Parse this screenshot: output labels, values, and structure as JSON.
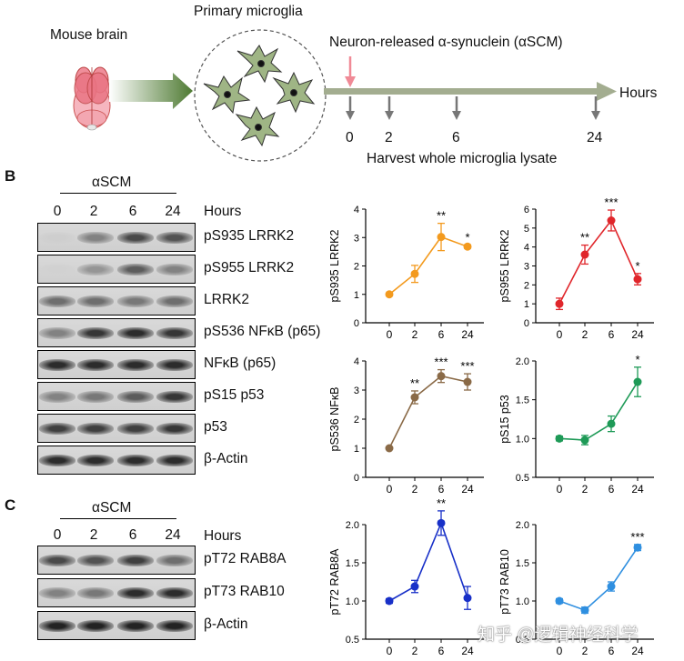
{
  "panel_a": {
    "mouse_brain_label": "Mouse brain",
    "microglia_label": "Primary microglia",
    "treatment_label": "Neuron-released α-synuclein (αSCM)",
    "axis_label": "Hours",
    "timepoints": [
      "0",
      "2",
      "6",
      "24"
    ],
    "harvest_label": "Harvest whole microglia lysate"
  },
  "panel_b": {
    "letter": "B",
    "treatment": "αSCM",
    "hours_label": "Hours",
    "lanes": [
      "0",
      "2",
      "6",
      "24"
    ],
    "rows": [
      {
        "label": "pS935 LRRK2",
        "intensity": [
          0.05,
          0.45,
          0.75,
          0.7
        ]
      },
      {
        "label": "pS955 LRRK2",
        "intensity": [
          0.03,
          0.35,
          0.65,
          0.45
        ]
      },
      {
        "label": "LRRK2",
        "intensity": [
          0.55,
          0.55,
          0.5,
          0.55
        ]
      },
      {
        "label": "pS536 NFκB (p65)",
        "intensity": [
          0.45,
          0.85,
          0.9,
          0.85
        ]
      },
      {
        "label": "NFκB (p65)",
        "intensity": [
          0.9,
          0.9,
          0.9,
          0.9
        ]
      },
      {
        "label": "pS15 p53",
        "intensity": [
          0.45,
          0.5,
          0.65,
          0.85
        ]
      },
      {
        "label": "p53",
        "intensity": [
          0.8,
          0.8,
          0.8,
          0.85
        ]
      },
      {
        "label": "β-Actin",
        "intensity": [
          0.9,
          0.9,
          0.9,
          0.9
        ]
      }
    ]
  },
  "panel_c": {
    "letter": "C",
    "treatment": "αSCM",
    "hours_label": "Hours",
    "lanes": [
      "0",
      "2",
      "6",
      "24"
    ],
    "rows": [
      {
        "label": "pT72 RAB8A",
        "intensity": [
          0.75,
          0.7,
          0.8,
          0.55
        ]
      },
      {
        "label": "pT73 RAB10",
        "intensity": [
          0.45,
          0.5,
          0.9,
          0.9
        ]
      },
      {
        "label": "β-Actin",
        "intensity": [
          0.95,
          0.95,
          0.95,
          0.95
        ]
      }
    ]
  },
  "watermark": "知乎 @逻辑神经科学",
  "chart_data": [
    {
      "type": "line",
      "ylabel": "pS935 LRRK2",
      "x": [
        "0",
        "2",
        "6",
        "24"
      ],
      "values": [
        1.0,
        1.72,
        3.02,
        2.68
      ],
      "errors": [
        0.05,
        0.3,
        0.48,
        0.06
      ],
      "sig": [
        "",
        "",
        "**",
        "*"
      ],
      "ylim": [
        0,
        4
      ],
      "yticks": [
        "0",
        "1",
        "2",
        "3",
        "4"
      ],
      "color": "#f39a1e"
    },
    {
      "type": "line",
      "ylabel": "pS955 LRRK2",
      "x": [
        "0",
        "2",
        "6",
        "24"
      ],
      "values": [
        1.0,
        3.6,
        5.4,
        2.3
      ],
      "errors": [
        0.3,
        0.5,
        0.55,
        0.3
      ],
      "sig": [
        "",
        "**",
        "***",
        "*"
      ],
      "ylim": [
        0,
        6
      ],
      "yticks": [
        "0",
        "1",
        "2",
        "3",
        "4",
        "5",
        "6"
      ],
      "color": "#e0262b"
    },
    {
      "type": "line",
      "ylabel": "pS536 NFκB",
      "x": [
        "0",
        "2",
        "6",
        "24"
      ],
      "values": [
        1.0,
        2.75,
        3.48,
        3.28
      ],
      "errors": [
        0.03,
        0.22,
        0.22,
        0.28
      ],
      "sig": [
        "",
        "**",
        "***",
        "***"
      ],
      "ylim": [
        0,
        4
      ],
      "yticks": [
        "0",
        "1",
        "2",
        "3",
        "4"
      ],
      "color": "#8a6a47"
    },
    {
      "type": "line",
      "ylabel": "pS15 p53",
      "x": [
        "0",
        "2",
        "6",
        "24"
      ],
      "values": [
        1.0,
        0.98,
        1.19,
        1.73
      ],
      "errors": [
        0.03,
        0.06,
        0.1,
        0.19
      ],
      "sig": [
        "",
        "",
        "",
        "*"
      ],
      "ylim": [
        0.5,
        2.0
      ],
      "yticks": [
        "0.5",
        "1.0",
        "1.5",
        "2.0"
      ],
      "color": "#1e9a57"
    },
    {
      "type": "line",
      "ylabel": "pT72 RAB8A",
      "x": [
        "0",
        "2",
        "6",
        "24"
      ],
      "values": [
        1.0,
        1.19,
        2.02,
        1.04
      ],
      "errors": [
        0.03,
        0.08,
        0.16,
        0.15
      ],
      "sig": [
        "",
        "",
        "**",
        ""
      ],
      "ylim": [
        0.5,
        2.0
      ],
      "yticks": [
        "0.5",
        "1.0",
        "1.5",
        "2.0"
      ],
      "color": "#1830c8"
    },
    {
      "type": "line",
      "ylabel": "pT73 RAB10",
      "x": [
        "0",
        "2",
        "6",
        "24"
      ],
      "values": [
        1.0,
        0.88,
        1.19,
        1.7
      ],
      "errors": [
        0.03,
        0.04,
        0.06,
        0.04
      ],
      "sig": [
        "",
        "",
        "",
        "***"
      ],
      "ylim": [
        0.5,
        2.0
      ],
      "yticks": [
        "0.5",
        "1.0",
        "1.5",
        "2.0"
      ],
      "color": "#2f8fe0"
    }
  ]
}
